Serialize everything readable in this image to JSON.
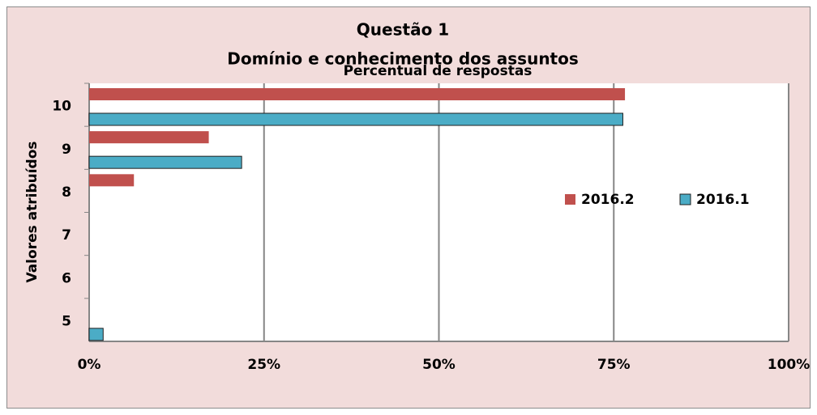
{
  "chart_data": {
    "type": "hbar",
    "title": "Questão 1",
    "subtitle": "Domínio e conhecimento dos assuntos",
    "x_label": "Percentual de respostas",
    "y_label": "Valores atribuídos",
    "categories": [
      "5",
      "6",
      "7",
      "8",
      "9",
      "10"
    ],
    "series": [
      {
        "name": "2016.2",
        "color": "#c0504d",
        "values": [
          0,
          0,
          0,
          6.4,
          17.1,
          76.6
        ]
      },
      {
        "name": "2016.1",
        "color": "#4bacc6",
        "values": [
          2.0,
          0,
          0,
          0,
          21.8,
          76.3
        ]
      }
    ],
    "xlim": [
      0,
      100
    ],
    "xticks": [
      {
        "value": 0,
        "label": "0%"
      },
      {
        "value": 25,
        "label": "25%"
      },
      {
        "value": 50,
        "label": "50%"
      },
      {
        "value": 75,
        "label": "75%"
      },
      {
        "value": 100,
        "label": "100%"
      }
    ],
    "grid": true,
    "legend": "center-right"
  }
}
